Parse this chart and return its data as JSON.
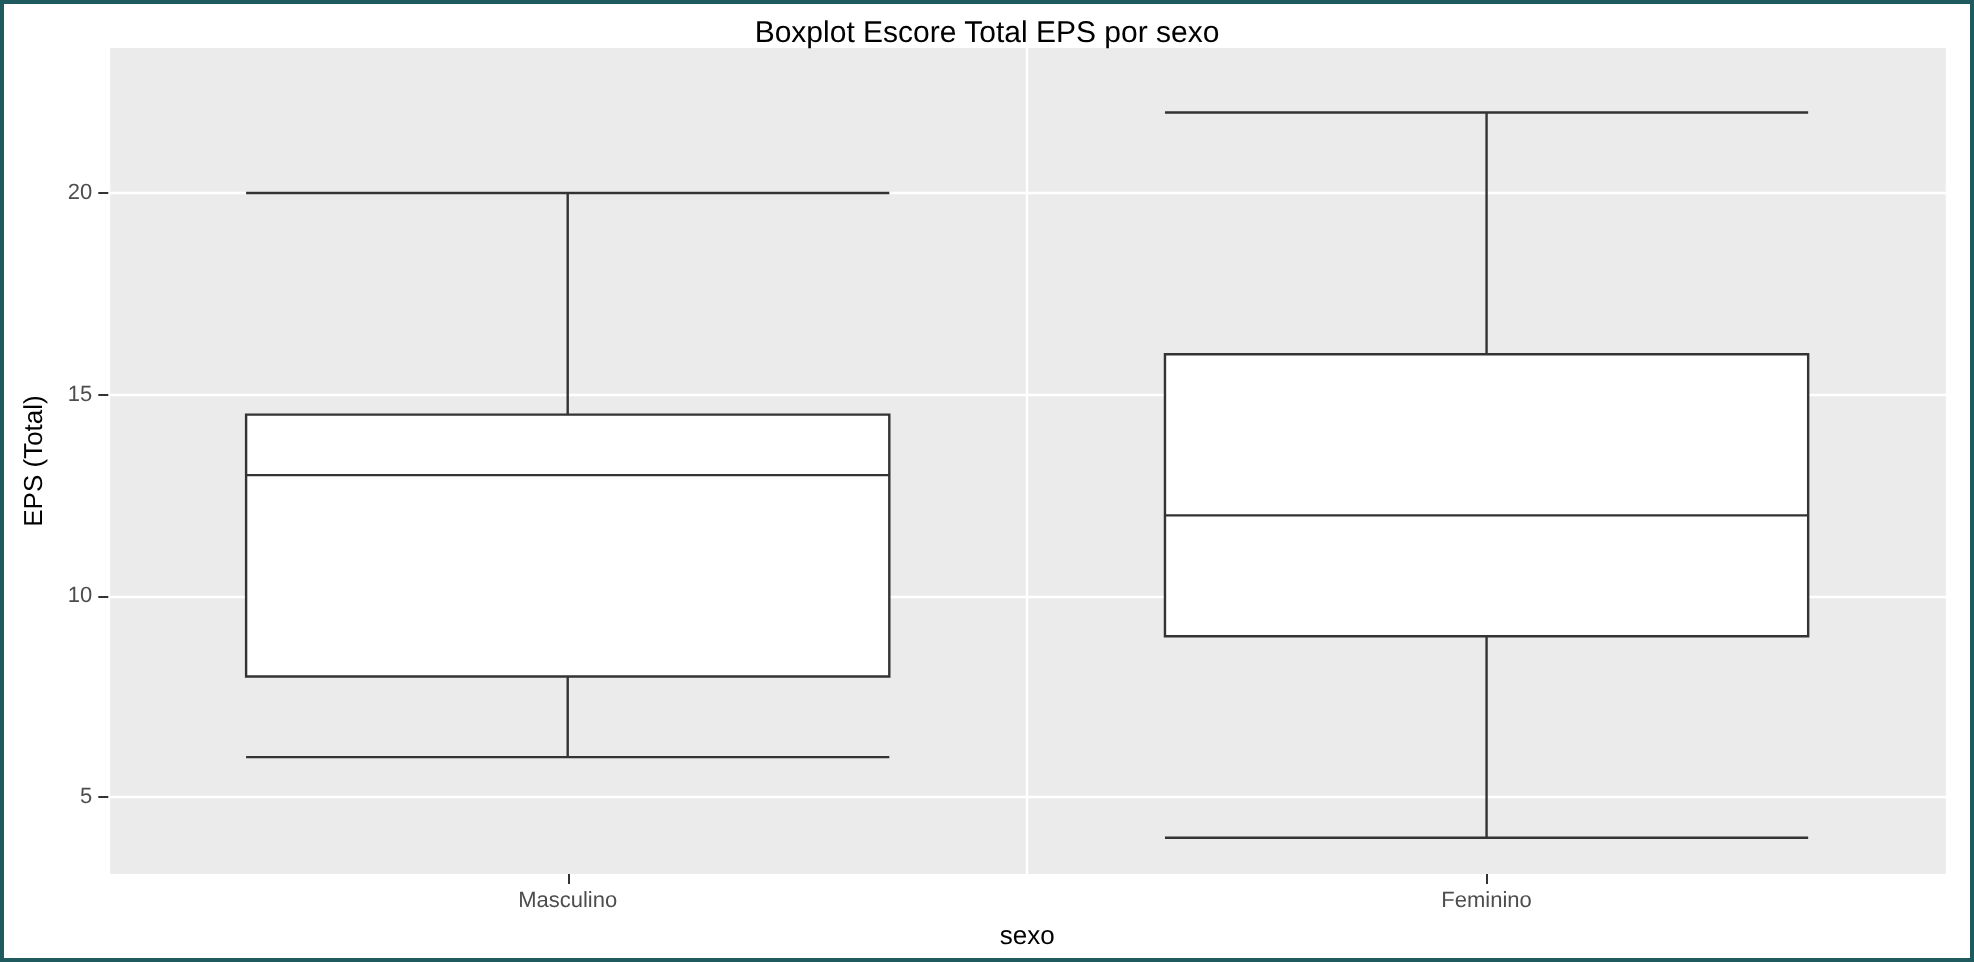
{
  "chart_data": {
    "type": "box",
    "title": "Boxplot Escore Total EPS por sexo",
    "xlabel": "sexo",
    "ylabel": "EPS (Total)",
    "categories": [
      "Masculino",
      "Feminino"
    ],
    "boxes": [
      {
        "low": 6,
        "q1": 8,
        "median": 13,
        "q3": 14.5,
        "high": 20
      },
      {
        "low": 4,
        "q1": 9,
        "median": 12,
        "q3": 16,
        "high": 22
      }
    ],
    "color": "#ffffff",
    "ylim": [
      3.1,
      23.6
    ],
    "yticks": [
      5,
      10,
      15,
      20
    ],
    "grid": true
  }
}
